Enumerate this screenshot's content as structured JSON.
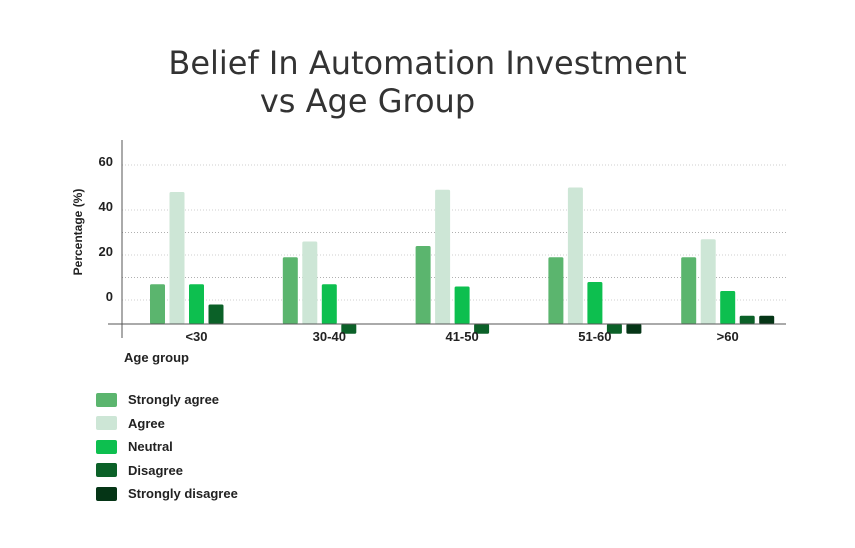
{
  "title_line1": "Belief In Automation Investment",
  "title_line2": "vs Age Group",
  "chart_data": {
    "type": "bar",
    "title": "Belief In Automation Investment vs Age Group",
    "xlabel": "Age group",
    "ylabel": "Percentage (%)",
    "categories": [
      "<30",
      "30-40",
      "41-50",
      "51-60",
      ">60"
    ],
    "yticks": [
      "0",
      "20",
      "40",
      "60"
    ],
    "ylim": [
      -10,
      70
    ],
    "grid": true,
    "legend_position": "bottom-left",
    "series": [
      {
        "name": "Strongly agree",
        "color": "#5bb56e",
        "values": [
          7,
          19,
          24,
          19,
          19
        ]
      },
      {
        "name": "Agree",
        "color": "#cde6d6",
        "values": [
          48,
          26,
          49,
          50,
          27
        ]
      },
      {
        "name": "Neutral",
        "color": "#0dbf4f",
        "values": [
          7,
          7,
          6,
          8,
          4
        ]
      },
      {
        "name": "Disagree",
        "color": "#0b6128",
        "values": [
          -2,
          -15,
          -15,
          -15,
          -7
        ]
      },
      {
        "name": "Strongly disagree",
        "color": "#053516",
        "values": [
          null,
          null,
          null,
          -15,
          -7
        ]
      }
    ]
  }
}
